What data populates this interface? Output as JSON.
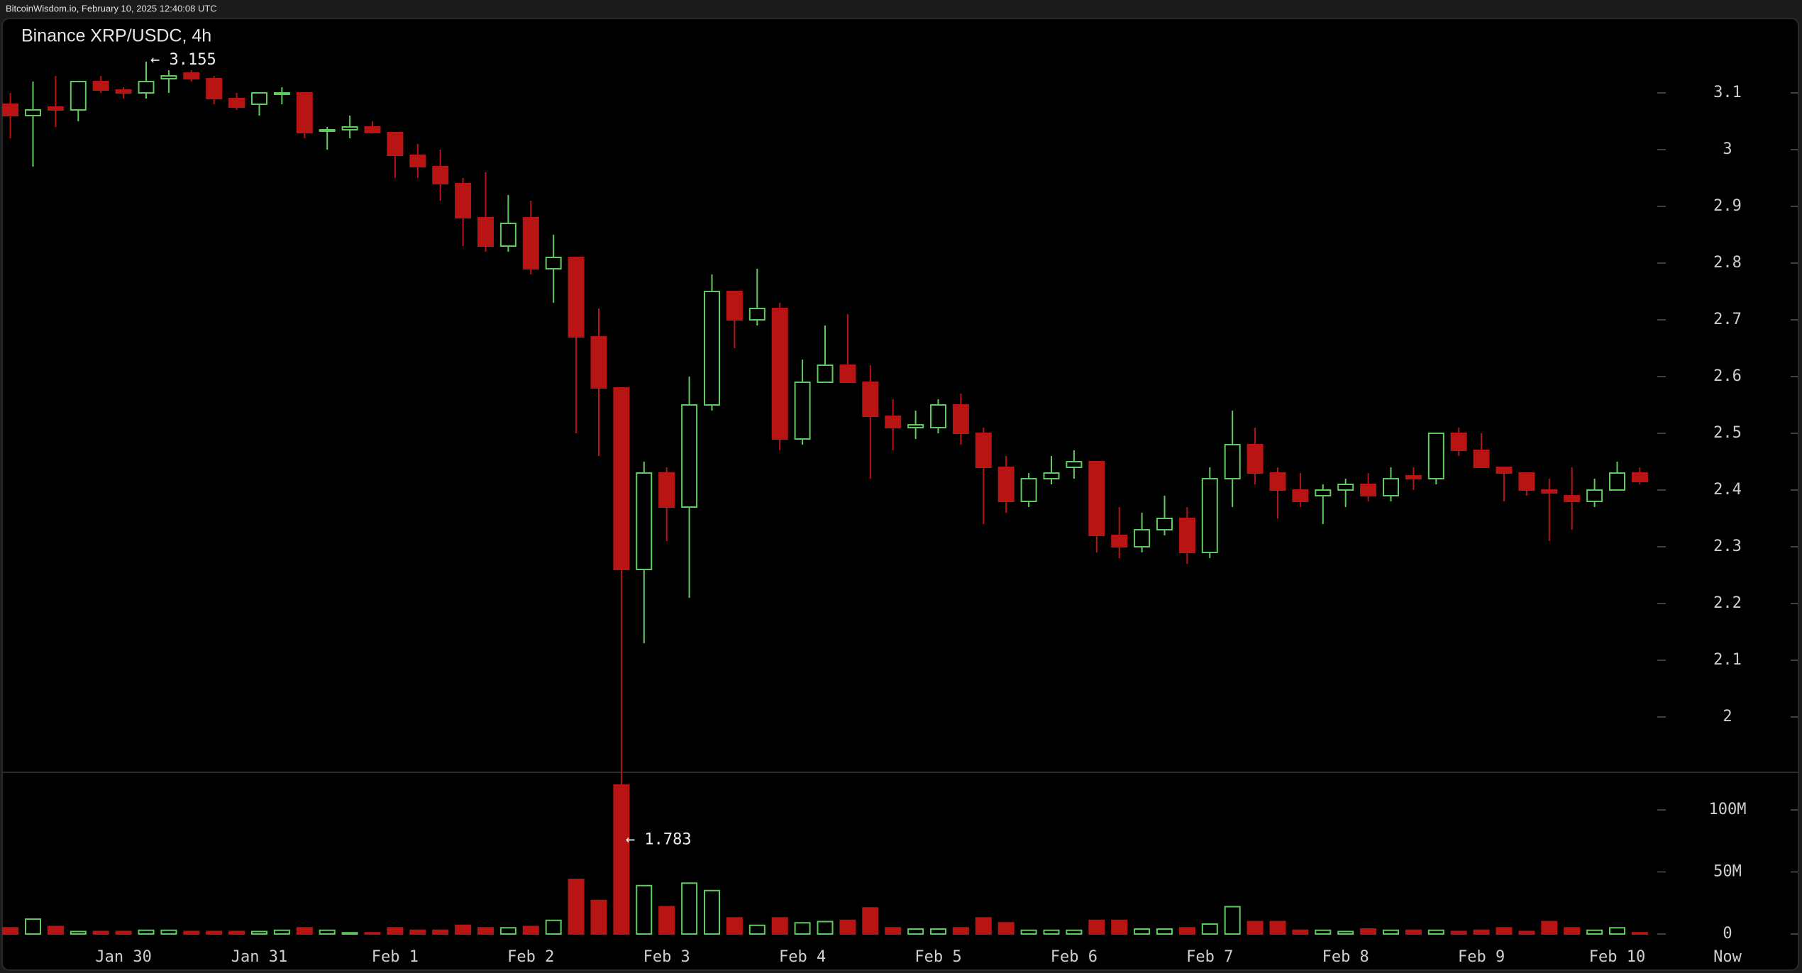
{
  "header": {
    "source": "BitcoinWisdom.io, February 10, 2025 12:40:08 UTC"
  },
  "chart_data": {
    "type": "candlestick",
    "title": "Binance XRP/USDC, 4h",
    "categories": [
      null,
      null,
      null,
      null,
      null,
      "Jan 30",
      null,
      null,
      null,
      null,
      null,
      "Jan 31",
      null,
      null,
      null,
      null,
      null,
      "Feb 1",
      null,
      null,
      null,
      null,
      null,
      "Feb 2",
      null,
      null,
      null,
      null,
      null,
      "Feb 3",
      null,
      null,
      null,
      null,
      null,
      "Feb 4",
      null,
      null,
      null,
      null,
      null,
      "Feb 5",
      null,
      null,
      null,
      null,
      null,
      "Feb 6",
      null,
      null,
      null,
      null,
      null,
      "Feb 7",
      null,
      null,
      null,
      null,
      null,
      "Feb 8",
      null,
      null,
      null,
      null,
      null,
      "Feb 9",
      null,
      null,
      null,
      null,
      null,
      "Feb 10",
      null
    ],
    "x_end_label": "Now",
    "open": [
      3.08,
      3.06,
      3.075,
      3.07,
      3.12,
      3.105,
      3.1,
      3.125,
      3.135,
      3.125,
      3.09,
      3.08,
      3.1,
      3.1,
      3.035,
      3.035,
      3.04,
      3.03,
      2.99,
      2.97,
      2.94,
      2.88,
      2.83,
      2.88,
      2.79,
      2.81,
      2.67,
      2.58,
      2.26,
      2.43,
      2.37,
      2.55,
      2.75,
      2.7,
      2.72,
      2.49,
      2.59,
      2.62,
      2.59,
      2.53,
      2.51,
      2.51,
      2.55,
      2.5,
      2.44,
      2.38,
      2.42,
      2.44,
      2.45,
      2.32,
      2.3,
      2.33,
      2.35,
      2.29,
      2.42,
      2.48,
      2.43,
      2.4,
      2.39,
      2.4,
      2.41,
      2.39,
      2.425,
      2.42,
      2.5,
      2.47,
      2.44,
      2.43,
      2.4,
      2.39,
      2.38,
      2.4,
      2.43
    ],
    "high": [
      3.1,
      3.12,
      3.13,
      3.12,
      3.13,
      3.11,
      3.155,
      3.14,
      3.14,
      3.13,
      3.1,
      3.1,
      3.11,
      3.1,
      3.04,
      3.06,
      3.05,
      3.03,
      3.01,
      3.0,
      2.95,
      2.96,
      2.92,
      2.91,
      2.85,
      2.81,
      2.72,
      2.58,
      2.45,
      2.44,
      2.6,
      2.78,
      2.75,
      2.79,
      2.73,
      2.63,
      2.69,
      2.71,
      2.62,
      2.56,
      2.54,
      2.56,
      2.57,
      2.51,
      2.46,
      2.43,
      2.46,
      2.47,
      2.45,
      2.37,
      2.36,
      2.39,
      2.37,
      2.44,
      2.54,
      2.51,
      2.44,
      2.43,
      2.41,
      2.42,
      2.43,
      2.44,
      2.44,
      2.5,
      2.51,
      2.5,
      2.44,
      2.43,
      2.42,
      2.44,
      2.42,
      2.45,
      2.44
    ],
    "low": [
      3.02,
      2.97,
      3.04,
      3.05,
      3.1,
      3.09,
      3.09,
      3.1,
      3.12,
      3.08,
      3.07,
      3.06,
      3.08,
      3.02,
      3.0,
      3.02,
      3.03,
      2.95,
      2.95,
      2.91,
      2.83,
      2.82,
      2.82,
      2.78,
      2.73,
      2.5,
      2.46,
      1.783,
      2.13,
      2.31,
      2.21,
      2.54,
      2.65,
      2.69,
      2.47,
      2.48,
      2.59,
      2.59,
      2.42,
      2.47,
      2.49,
      2.5,
      2.48,
      2.34,
      2.36,
      2.37,
      2.41,
      2.42,
      2.29,
      2.28,
      2.29,
      2.32,
      2.27,
      2.28,
      2.37,
      2.41,
      2.35,
      2.37,
      2.34,
      2.37,
      2.38,
      2.38,
      2.4,
      2.41,
      2.46,
      2.44,
      2.38,
      2.39,
      2.31,
      2.33,
      2.37,
      2.4,
      2.41
    ],
    "close": [
      3.06,
      3.07,
      3.07,
      3.12,
      3.105,
      3.1,
      3.12,
      3.13,
      3.125,
      3.09,
      3.075,
      3.1,
      3.1,
      3.03,
      3.035,
      3.04,
      3.03,
      2.99,
      2.97,
      2.94,
      2.88,
      2.83,
      2.87,
      2.79,
      2.81,
      2.67,
      2.58,
      2.26,
      2.43,
      2.37,
      2.55,
      2.75,
      2.7,
      2.72,
      2.49,
      2.59,
      2.62,
      2.59,
      2.53,
      2.51,
      2.515,
      2.55,
      2.5,
      2.44,
      2.38,
      2.42,
      2.43,
      2.45,
      2.32,
      2.3,
      2.33,
      2.35,
      2.29,
      2.42,
      2.48,
      2.43,
      2.4,
      2.38,
      2.4,
      2.41,
      2.39,
      2.42,
      2.42,
      2.5,
      2.47,
      2.44,
      2.43,
      2.4,
      2.395,
      2.38,
      2.4,
      2.43,
      2.415
    ],
    "annotations": {
      "high_label": "← 3.155",
      "low_label": "← 1.783"
    },
    "ylim": [
      1.9025,
      3.23125
    ],
    "yticks": [
      2,
      2.1,
      2.2,
      2.3,
      2.4,
      2.5,
      2.6,
      2.7,
      2.8,
      2.9,
      3,
      3.1
    ],
    "colors": {
      "up": "#5ecb5e",
      "down": "#b81414"
    },
    "volume": {
      "values": [
        5000000,
        12000000,
        6000000,
        2000000,
        2000000,
        2000000,
        3000000,
        3000000,
        2000000,
        2000000,
        2000000,
        2000000,
        3000000,
        5000000,
        3000000,
        1000000,
        1000000,
        5000000,
        3000000,
        3000000,
        7000000,
        5000000,
        5000000,
        6000000,
        11000000,
        44000000,
        27000000,
        120000000,
        39000000,
        22000000,
        41000000,
        35000000,
        13000000,
        7000000,
        13000000,
        9000000,
        10000000,
        11000000,
        21000000,
        5000000,
        4000000,
        4000000,
        5000000,
        13000000,
        9000000,
        3000000,
        3000000,
        3000000,
        11000000,
        11000000,
        4000000,
        4000000,
        5000000,
        8000000,
        22000000,
        10000000,
        10000000,
        3000000,
        3000000,
        2000000,
        4000000,
        3000000,
        3000000,
        3000000,
        2000000,
        3000000,
        5000000,
        2000000,
        10000000,
        5000000,
        3000000,
        5000000,
        1000000
      ],
      "ylim": [
        0,
        130000000
      ],
      "yticks": [
        0,
        {
          "value": 50000000,
          "label": "50M"
        },
        {
          "value": 100000000,
          "label": "100M"
        }
      ]
    }
  }
}
